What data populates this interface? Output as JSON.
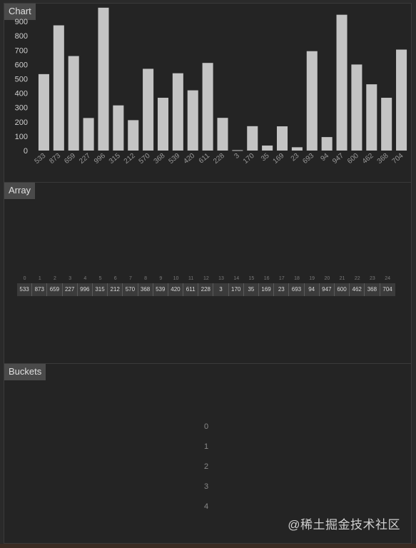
{
  "panels": {
    "chart_title": "Chart",
    "array_title": "Array",
    "buckets_title": "Buckets"
  },
  "chart_data": {
    "type": "bar",
    "categories": [
      "533",
      "873",
      "659",
      "227",
      "996",
      "315",
      "212",
      "570",
      "368",
      "539",
      "420",
      "611",
      "228",
      "3",
      "170",
      "35",
      "169",
      "23",
      "693",
      "94",
      "947",
      "600",
      "462",
      "368",
      "704"
    ],
    "values": [
      533,
      873,
      659,
      227,
      996,
      315,
      212,
      570,
      368,
      539,
      420,
      611,
      228,
      3,
      170,
      35,
      169,
      23,
      693,
      94,
      947,
      600,
      462,
      368,
      704
    ],
    "title": "",
    "xlabel": "",
    "ylabel": "",
    "ylim": [
      0,
      1000
    ],
    "yticks": [
      0,
      100,
      200,
      300,
      400,
      500,
      600,
      700,
      800,
      900
    ],
    "grid": false,
    "bar_color": "#c4c4c4"
  },
  "array": {
    "indices": [
      "0",
      "1",
      "2",
      "3",
      "4",
      "5",
      "6",
      "7",
      "8",
      "9",
      "10",
      "11",
      "12",
      "13",
      "14",
      "15",
      "16",
      "17",
      "18",
      "19",
      "20",
      "21",
      "22",
      "23",
      "24"
    ],
    "values": [
      "533",
      "873",
      "659",
      "227",
      "996",
      "315",
      "212",
      "570",
      "368",
      "539",
      "420",
      "611",
      "228",
      "3",
      "170",
      "35",
      "169",
      "23",
      "693",
      "94",
      "947",
      "600",
      "462",
      "368",
      "704"
    ]
  },
  "buckets": [
    "0",
    "1",
    "2",
    "3",
    "4"
  ],
  "watermark": "@稀土掘金技术社区"
}
